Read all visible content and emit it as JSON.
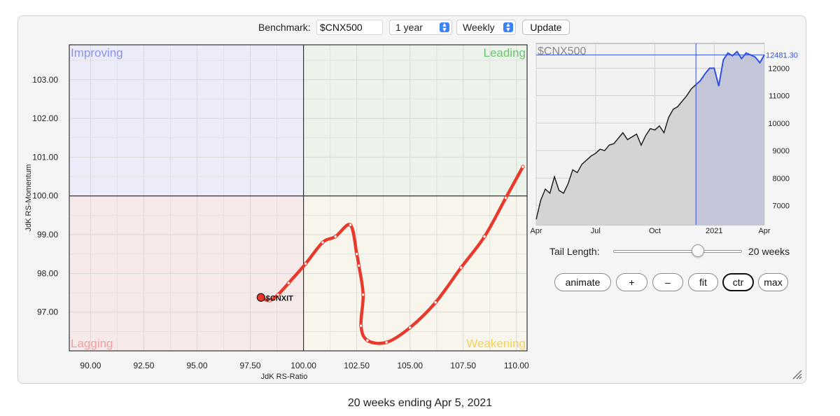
{
  "toolbar": {
    "benchmark_label": "Benchmark:",
    "benchmark_value": "$CNX500",
    "period": "1 year",
    "frequency": "Weekly",
    "update_label": "Update"
  },
  "controls": {
    "tail_label": "Tail Length:",
    "tail_value": "20 weeks",
    "tail_fraction": 0.66,
    "buttons": [
      "animate",
      "+",
      "–",
      "fit",
      "ctr",
      "max"
    ],
    "active_button": "ctr"
  },
  "caption": "20 weeks ending Apr 5, 2021",
  "colors": {
    "tail": "#e8392c",
    "improving": "#8b93e8",
    "leading": "#6fc26f",
    "lagging": "#f0a0a0",
    "weakening": "#f2d25a",
    "benchmark_line": "#3050e0"
  },
  "chart_data": [
    {
      "type": "scatter",
      "title": "",
      "xlabel": "JdK RS-Ratio",
      "ylabel": "JdK RS-Momentum",
      "xlim": [
        89.0,
        110.5
      ],
      "ylim": [
        96.0,
        103.9
      ],
      "x_ticks": [
        "90.00",
        "92.50",
        "95.00",
        "97.50",
        "100.00",
        "102.50",
        "105.00",
        "107.50",
        "110.00"
      ],
      "y_ticks": [
        "97.00",
        "98.00",
        "99.00",
        "100.00",
        "101.00",
        "102.00",
        "103.00"
      ],
      "quadrants": {
        "top_left": "Improving",
        "top_right": "Leading",
        "bottom_left": "Lagging",
        "bottom_right": "Weakening"
      },
      "series": [
        {
          "name": "$CNXIT",
          "x": [
            110.3,
            109.5,
            108.5,
            107.4,
            106.2,
            105.0,
            103.9,
            103.0,
            102.7,
            102.8,
            102.6,
            102.5,
            102.2,
            101.5,
            100.9,
            100.1,
            99.3,
            98.8,
            98.4,
            98.0
          ],
          "y": [
            100.75,
            99.95,
            98.95,
            98.15,
            97.25,
            96.6,
            96.22,
            96.27,
            96.65,
            97.45,
            98.2,
            98.5,
            99.25,
            98.95,
            98.8,
            98.25,
            97.75,
            97.45,
            97.3,
            97.38
          ]
        }
      ]
    },
    {
      "type": "area",
      "title": "$CNX500",
      "last_value": "12481.30",
      "x_ticks": [
        "Apr",
        "Jul",
        "Oct",
        "2021",
        "Apr"
      ],
      "y_ticks": [
        "7000",
        "8000",
        "9000",
        "10000",
        "11000",
        "12000"
      ],
      "ylim": [
        6300,
        12900
      ],
      "highlight_from_week": 35,
      "values": [
        6500,
        7200,
        7600,
        7450,
        8050,
        7550,
        7450,
        7800,
        8300,
        8200,
        8500,
        8650,
        8800,
        8900,
        9050,
        9000,
        9200,
        9250,
        9450,
        9650,
        9400,
        9500,
        9600,
        9200,
        9550,
        9800,
        9750,
        9900,
        9650,
        10200,
        10500,
        10600,
        10800,
        11000,
        11250,
        11400,
        11550,
        11800,
        12000,
        12000,
        11350,
        12300,
        12550,
        12450,
        12600,
        12350,
        12550,
        12480,
        12400,
        12200,
        12481.3
      ]
    }
  ]
}
